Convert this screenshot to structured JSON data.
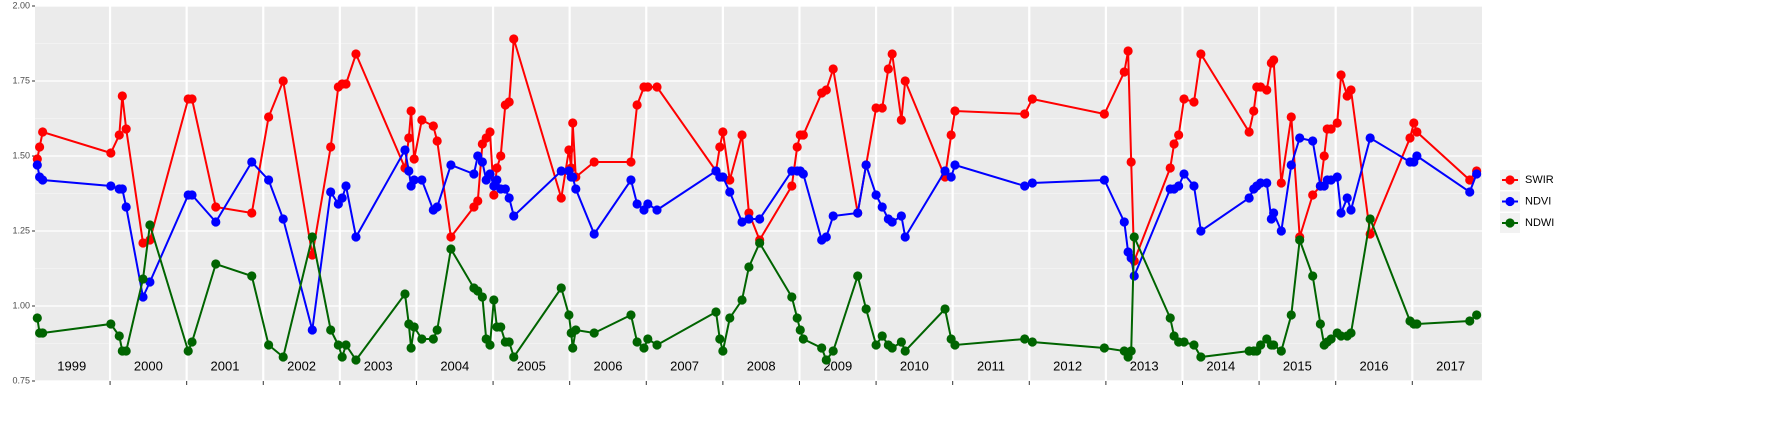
{
  "chart_data": {
    "type": "line",
    "x": [
      1999.05,
      1999.08,
      1999.12,
      2000.01,
      2000.12,
      2000.16,
      2000.21,
      2000.43,
      2000.52,
      2001.02,
      2001.07,
      2001.38,
      2001.85,
      2002.07,
      2002.26,
      2002.64,
      2002.88,
      2002.98,
      2003.03,
      2003.08,
      2003.21,
      2003.85,
      2003.9,
      2003.93,
      2003.97,
      2004.07,
      2004.22,
      2004.27,
      2004.45,
      2004.75,
      2004.8,
      2004.86,
      2004.91,
      2004.96,
      2005.01,
      2005.05,
      2005.1,
      2005.16,
      2005.21,
      2005.27,
      2005.89,
      2005.99,
      2006.02,
      2006.04,
      2006.08,
      2006.32,
      2006.8,
      2006.88,
      2006.97,
      2007.02,
      2007.14,
      2007.91,
      2007.96,
      2008.0,
      2008.09,
      2008.25,
      2008.34,
      2008.48,
      2008.9,
      2008.97,
      2009.01,
      2009.05,
      2009.29,
      2009.35,
      2009.44,
      2009.76,
      2009.87,
      2010.0,
      2010.08,
      2010.16,
      2010.21,
      2010.33,
      2010.38,
      2010.9,
      2010.98,
      2011.03,
      2011.94,
      2012.04,
      2012.98,
      2013.24,
      2013.29,
      2013.33,
      2013.37,
      2013.84,
      2013.89,
      2013.95,
      2014.02,
      2014.15,
      2014.24,
      2014.87,
      2014.93,
      2014.97,
      2015.02,
      2015.1,
      2015.16,
      2015.19,
      2015.29,
      2015.42,
      2015.53,
      2015.7,
      2015.8,
      2015.85,
      2015.89,
      2015.94,
      2016.02,
      2016.07,
      2016.15,
      2016.2,
      2016.45,
      2016.97,
      2017.02,
      2017.06,
      2017.75,
      2017.84
    ],
    "series": [
      {
        "name": "SWIR",
        "color": "#ff0000",
        "values": [
          1.49,
          1.53,
          1.58,
          1.51,
          1.57,
          1.7,
          1.59,
          1.21,
          1.22,
          1.69,
          1.69,
          1.33,
          1.31,
          1.63,
          1.75,
          1.17,
          1.53,
          1.73,
          1.74,
          1.74,
          1.84,
          1.46,
          1.56,
          1.65,
          1.49,
          1.62,
          1.6,
          1.55,
          1.23,
          1.33,
          1.35,
          1.54,
          1.56,
          1.58,
          1.37,
          1.46,
          1.5,
          1.67,
          1.68,
          1.89,
          1.36,
          1.52,
          1.46,
          1.61,
          1.43,
          1.48,
          1.48,
          1.67,
          1.73,
          1.73,
          1.73,
          1.45,
          1.53,
          1.58,
          1.42,
          1.57,
          1.31,
          1.22,
          1.4,
          1.53,
          1.57,
          1.57,
          1.71,
          1.72,
          1.79,
          1.31,
          1.47,
          1.66,
          1.66,
          1.79,
          1.84,
          1.62,
          1.75,
          1.43,
          1.57,
          1.65,
          1.64,
          1.69,
          1.64,
          1.78,
          1.85,
          1.48,
          1.15,
          1.46,
          1.54,
          1.57,
          1.69,
          1.68,
          1.84,
          1.58,
          1.65,
          1.73,
          1.73,
          1.72,
          1.81,
          1.82,
          1.41,
          1.63,
          1.23,
          1.37,
          1.4,
          1.5,
          1.59,
          1.59,
          1.61,
          1.77,
          1.7,
          1.72,
          1.24,
          1.56,
          1.61,
          1.58,
          1.42,
          1.45
        ]
      },
      {
        "name": "NDVI",
        "color": "#0000ff",
        "values": [
          1.47,
          1.43,
          1.42,
          1.4,
          1.39,
          1.39,
          1.33,
          1.03,
          1.08,
          1.37,
          1.37,
          1.28,
          1.48,
          1.42,
          1.29,
          0.92,
          1.38,
          1.34,
          1.36,
          1.4,
          1.23,
          1.52,
          1.45,
          1.4,
          1.42,
          1.42,
          1.32,
          1.33,
          1.47,
          1.44,
          1.5,
          1.48,
          1.42,
          1.44,
          1.4,
          1.42,
          1.39,
          1.39,
          1.36,
          1.3,
          1.45,
          1.45,
          1.43,
          1.43,
          1.39,
          1.24,
          1.42,
          1.34,
          1.32,
          1.34,
          1.32,
          1.45,
          1.43,
          1.43,
          1.38,
          1.28,
          1.29,
          1.29,
          1.45,
          1.45,
          1.45,
          1.44,
          1.22,
          1.23,
          1.3,
          1.31,
          1.47,
          1.37,
          1.33,
          1.29,
          1.28,
          1.3,
          1.23,
          1.45,
          1.43,
          1.47,
          1.4,
          1.41,
          1.42,
          1.28,
          1.18,
          1.16,
          1.1,
          1.39,
          1.39,
          1.4,
          1.44,
          1.4,
          1.25,
          1.36,
          1.39,
          1.4,
          1.41,
          1.41,
          1.29,
          1.31,
          1.25,
          1.47,
          1.56,
          1.55,
          1.4,
          1.4,
          1.42,
          1.42,
          1.43,
          1.31,
          1.36,
          1.32,
          1.56,
          1.48,
          1.48,
          1.5,
          1.38,
          1.44
        ]
      },
      {
        "name": "NDWI",
        "color": "#006400",
        "values": [
          0.96,
          0.91,
          0.91,
          0.94,
          0.9,
          0.85,
          0.85,
          1.09,
          1.27,
          0.85,
          0.88,
          1.14,
          1.1,
          0.87,
          0.83,
          1.23,
          0.92,
          0.87,
          0.83,
          0.87,
          0.82,
          1.04,
          0.94,
          0.86,
          0.93,
          0.89,
          0.89,
          0.92,
          1.19,
          1.06,
          1.05,
          1.03,
          0.89,
          0.87,
          1.02,
          0.93,
          0.93,
          0.88,
          0.88,
          0.83,
          1.06,
          0.97,
          0.91,
          0.86,
          0.92,
          0.91,
          0.97,
          0.88,
          0.86,
          0.89,
          0.87,
          0.98,
          0.89,
          0.85,
          0.96,
          1.02,
          1.13,
          1.21,
          1.03,
          0.96,
          0.92,
          0.89,
          0.86,
          0.82,
          0.85,
          1.1,
          0.99,
          0.87,
          0.9,
          0.87,
          0.86,
          0.88,
          0.85,
          0.99,
          0.89,
          0.87,
          0.89,
          0.88,
          0.86,
          0.85,
          0.83,
          0.85,
          1.23,
          0.96,
          0.9,
          0.88,
          0.88,
          0.87,
          0.83,
          0.85,
          0.85,
          0.85,
          0.87,
          0.89,
          0.87,
          0.87,
          0.85,
          0.97,
          1.22,
          1.1,
          0.94,
          0.87,
          0.88,
          0.89,
          0.91,
          0.9,
          0.9,
          0.91,
          1.29,
          0.95,
          0.94,
          0.94,
          0.95,
          0.97
        ]
      }
    ],
    "xlim": [
      1999.02,
      2017.91
    ],
    "xticks": [
      {
        "value": 1999.5,
        "label": "1999"
      },
      {
        "value": 2000.5,
        "label": "2000"
      },
      {
        "value": 2001.5,
        "label": "2001"
      },
      {
        "value": 2002.5,
        "label": "2002"
      },
      {
        "value": 2003.5,
        "label": "2003"
      },
      {
        "value": 2004.5,
        "label": "2004"
      },
      {
        "value": 2005.5,
        "label": "2005"
      },
      {
        "value": 2006.5,
        "label": "2006"
      },
      {
        "value": 2007.5,
        "label": "2007"
      },
      {
        "value": 2008.5,
        "label": "2008"
      },
      {
        "value": 2009.5,
        "label": "2009"
      },
      {
        "value": 2010.5,
        "label": "2010"
      },
      {
        "value": 2011.5,
        "label": "2011"
      },
      {
        "value": 2012.5,
        "label": "2012"
      },
      {
        "value": 2013.5,
        "label": "2013"
      },
      {
        "value": 2014.5,
        "label": "2014"
      },
      {
        "value": 2015.5,
        "label": "2015"
      },
      {
        "value": 2016.5,
        "label": "2016"
      },
      {
        "value": 2017.5,
        "label": "2017"
      }
    ],
    "xbreaks": [
      2000,
      2001,
      2002,
      2003,
      2004,
      2005,
      2006,
      2007,
      2008,
      2009,
      2010,
      2011,
      2012,
      2013,
      2014,
      2015,
      2016,
      2017
    ],
    "ylim": [
      0.75,
      2.0
    ],
    "yticks": [
      0.75,
      {
        "value": 1,
        "label": "1.00"
      },
      1.25,
      {
        "value": 1.5,
        "label": "1.50"
      },
      1.75,
      {
        "value": 2,
        "label": "2.00"
      }
    ],
    "grid": true,
    "legend": "right"
  }
}
